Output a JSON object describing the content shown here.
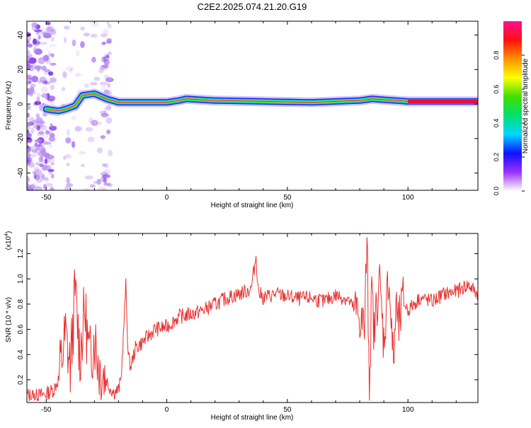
{
  "title": "C2E2.2025.074.21.20.G19",
  "colors": {
    "snr_line": "#e8302f",
    "track": "#e81030",
    "colorbar_stops": [
      "#ffffff",
      "#9b30ff",
      "#1010ff",
      "#00d8ff",
      "#00e070",
      "#40e000",
      "#ffff00",
      "#ff9000",
      "#ff1010",
      "#ff1090"
    ]
  },
  "chart_data": [
    {
      "type": "heatmap",
      "name": "spectrogram",
      "xlabel": "Height of straight line (km)",
      "ylabel": "Frequency (Hz)",
      "xlim": [
        -58,
        129
      ],
      "ylim": [
        -50,
        48
      ],
      "xticks": [
        -50,
        0,
        50,
        100
      ],
      "yticks": [
        -40,
        -20,
        0,
        20,
        40
      ],
      "track": [
        {
          "x": -50,
          "y": -3
        },
        {
          "x": -45,
          "y": -4
        },
        {
          "x": -42,
          "y": -3
        },
        {
          "x": -38,
          "y": -1
        },
        {
          "x": -35,
          "y": 5
        },
        {
          "x": -30,
          "y": 6
        },
        {
          "x": -25,
          "y": 3
        },
        {
          "x": -20,
          "y": 1
        },
        {
          "x": -15,
          "y": 1
        },
        {
          "x": 0,
          "y": 1
        },
        {
          "x": 5,
          "y": 2
        },
        {
          "x": 8,
          "y": 3
        },
        {
          "x": 20,
          "y": 2
        },
        {
          "x": 40,
          "y": 1.5
        },
        {
          "x": 60,
          "y": 1
        },
        {
          "x": 80,
          "y": 2
        },
        {
          "x": 85,
          "y": 3
        },
        {
          "x": 95,
          "y": 2
        },
        {
          "x": 100,
          "y": 1.5
        },
        {
          "x": 129,
          "y": 1.5
        }
      ],
      "colorbar": {
        "label": "Normalized spectral amplitude",
        "range": [
          0,
          1
        ],
        "ticks": [
          0.0,
          0.2,
          0.4,
          0.6,
          0.8
        ]
      }
    },
    {
      "type": "line",
      "name": "snr",
      "xlabel": "Height of straight line (km)",
      "ylabel": "SNR (10 * v/v)",
      "scale_label": "(x10",
      "scale_exp": "4",
      "xlim": [
        -58,
        129
      ],
      "ylim": [
        0.02,
        1.36
      ],
      "xticks": [
        -50,
        0,
        50,
        100
      ],
      "yticks": [
        0.2,
        0.4,
        0.6,
        0.8,
        1.0,
        1.2
      ],
      "series": [
        {
          "x": [
            -58,
            -54,
            -50,
            -47,
            -45,
            -42,
            -40,
            -38,
            -36,
            -34,
            -32,
            -30,
            -28,
            -26,
            -24,
            -22,
            -20,
            -19,
            -18,
            -17,
            -16,
            -15,
            -13,
            -10,
            -5,
            0,
            5,
            10,
            15,
            20,
            25,
            30,
            35,
            37,
            38,
            40,
            45,
            50,
            55,
            60,
            65,
            70,
            75,
            78,
            80,
            82,
            83,
            84,
            85,
            86,
            88,
            90,
            92,
            94,
            95,
            96,
            98,
            100,
            105,
            110,
            115,
            120,
            125,
            129
          ],
          "y": [
            0.08,
            0.07,
            0.09,
            0.12,
            0.2,
            0.55,
            0.3,
            0.9,
            0.4,
            0.75,
            0.35,
            0.55,
            0.3,
            0.25,
            0.15,
            0.1,
            0.12,
            0.2,
            0.55,
            0.95,
            0.4,
            0.3,
            0.45,
            0.5,
            0.6,
            0.62,
            0.7,
            0.72,
            0.75,
            0.8,
            0.85,
            0.88,
            0.92,
            1.18,
            0.9,
            0.85,
            0.88,
            0.86,
            0.84,
            0.85,
            0.82,
            0.87,
            0.84,
            0.75,
            0.7,
            0.6,
            1.33,
            0.15,
            0.9,
            0.55,
            1.02,
            0.5,
            1.05,
            0.3,
            0.8,
            0.6,
            0.82,
            0.75,
            0.85,
            0.82,
            0.88,
            0.9,
            0.95,
            0.88
          ]
        }
      ]
    }
  ]
}
